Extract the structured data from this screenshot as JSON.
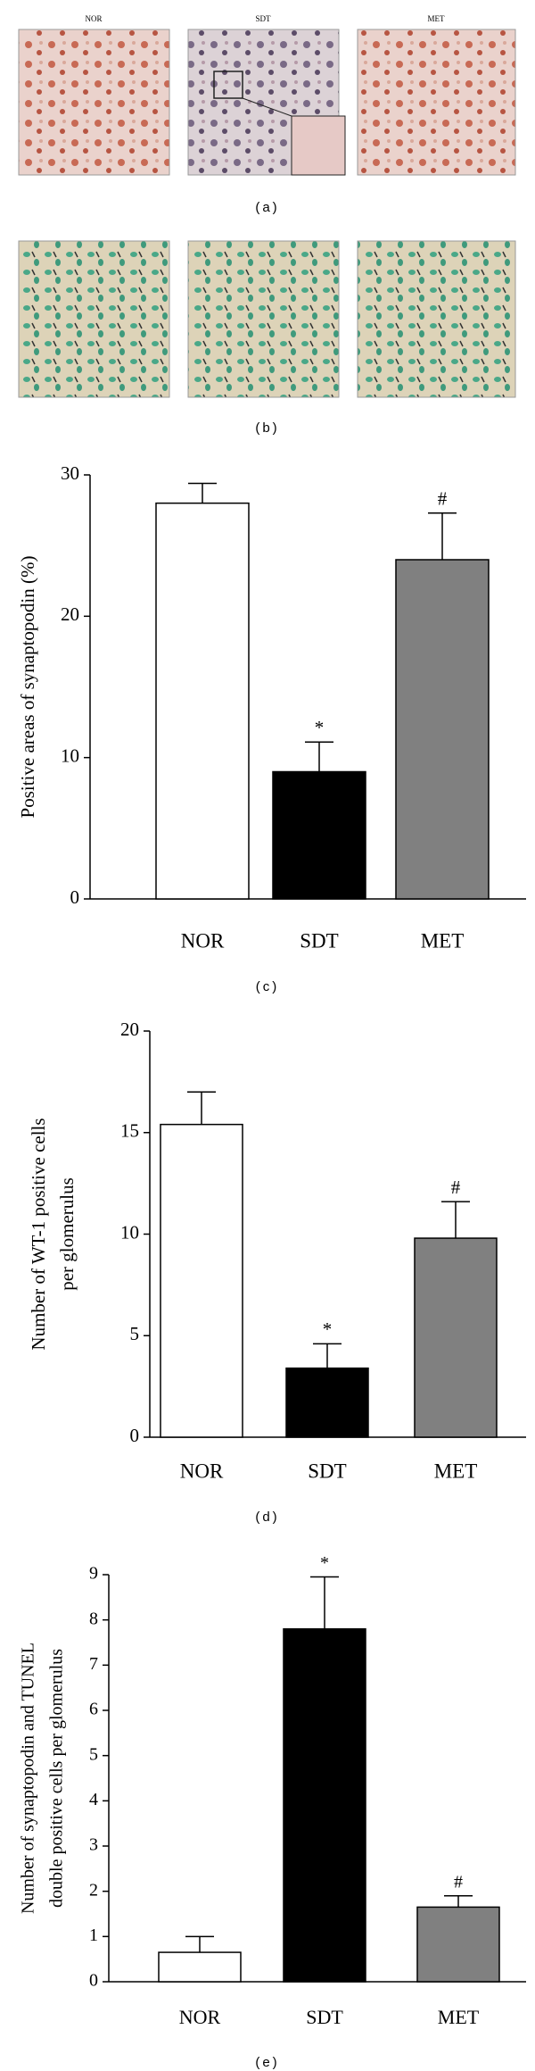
{
  "image_panels": [
    {
      "labels": [
        "NOR",
        "SDT",
        "MET"
      ],
      "caption": "(a)"
    },
    {
      "caption": "(b)"
    }
  ],
  "chart_data": [
    {
      "type": "bar",
      "y_label": [
        "Positive areas of synaptopodin (%)"
      ],
      "categories": [
        "NOR",
        "SDT",
        "MET"
      ],
      "values": [
        28,
        9,
        24
      ],
      "errors": [
        1.4,
        2.1,
        3.3
      ],
      "significance": [
        null,
        "*",
        "#"
      ],
      "colors": [
        "#ffffff",
        "#000000",
        "#808080"
      ],
      "ylim": [
        0,
        30
      ],
      "yticks": [
        0,
        10,
        20,
        30
      ],
      "caption": "(c)"
    },
    {
      "type": "bar",
      "y_label": [
        "Number of WT-1 positive cells",
        "per glomerulus"
      ],
      "categories": [
        "NOR",
        "SDT",
        "MET"
      ],
      "values": [
        15.4,
        3.4,
        9.8
      ],
      "errors": [
        1.6,
        1.2,
        1.8
      ],
      "significance": [
        null,
        "*",
        "#"
      ],
      "colors": [
        "#ffffff",
        "#000000",
        "#808080"
      ],
      "ylim": [
        0,
        20
      ],
      "yticks": [
        0,
        5,
        10,
        15,
        20
      ],
      "caption": "(d)"
    },
    {
      "type": "bar",
      "y_label": [
        "Number of synaptopodin and TUNEL",
        "double positive cells per glomerulus"
      ],
      "categories": [
        "NOR",
        "SDT",
        "MET"
      ],
      "values": [
        0.65,
        7.8,
        1.65
      ],
      "errors": [
        0.35,
        1.15,
        0.25
      ],
      "significance": [
        null,
        "*",
        "#"
      ],
      "colors": [
        "#ffffff",
        "#000000",
        "#808080"
      ],
      "ylim": [
        0,
        9
      ],
      "yticks": [
        0,
        1,
        2,
        3,
        4,
        5,
        6,
        7,
        8,
        9
      ],
      "caption": "(e)"
    }
  ]
}
